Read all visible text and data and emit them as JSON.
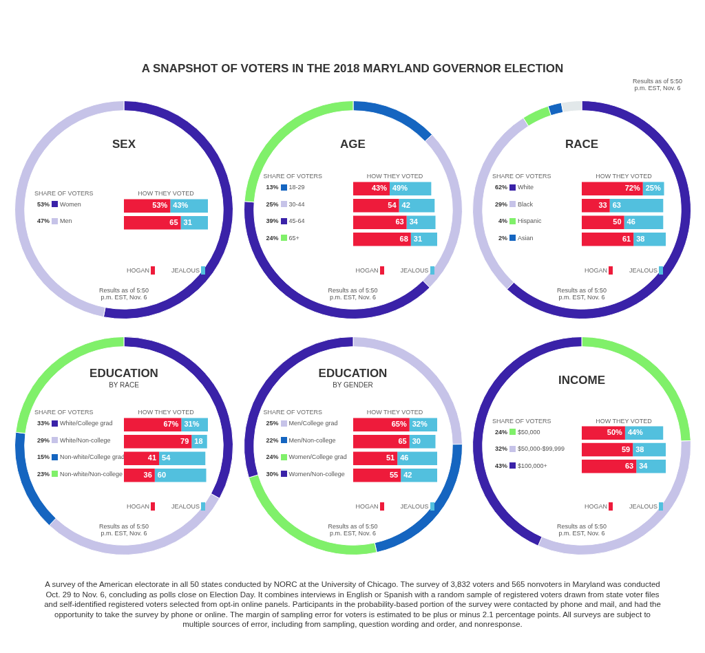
{
  "chart_data": [
    {
      "type": "other",
      "title": "A SNAPSHOT OF VOTERS IN THE 2018 MARYLAND GOVERNOR ELECTION",
      "annotations": [
        "Results as of 5:50 p.m. EST, Nov. 6",
        "A survey of the American electorate in all 50 states conducted by NORC at the University of Chicago. The survey of 3,832 voters and 565 nonvoters in Maryland was conducted Oct. 29 to Nov. 6, concluding as polls close on Election Day. It combines interviews in English or Spanish with a random sample of registered voters drawn from state voter files and self-identified registered voters selected from opt-in online panels. Participants in the probability-based portion of the survey were contacted by phone and mail, and had the opportunity to take the survey by phone or online. The margin of sampling error for voters is estimated to be plus or minus 2.1 percentage points. All surveys are subject to multiple sources of error, including from sampling, question wording and order, and nonresponse."
      ]
    },
    {
      "type": "donut",
      "title": "SEX",
      "legend_title": "SHARE OF VOTERS",
      "legend": "left",
      "categories": [
        "Women",
        "Men"
      ],
      "values": [
        53,
        47
      ],
      "colors": [
        "#3a22a8",
        "#c6c3e8"
      ],
      "value_labels": [
        "53%",
        "47%"
      ],
      "annotations": [
        "Results as of 5:50 p.m. EST, Nov. 6"
      ]
    },
    {
      "type": "bar",
      "orientation": "horizontal",
      "stacked": true,
      "title": "HOW THEY VOTED",
      "legend": "bottom",
      "tick_labels": false,
      "categories": [
        null,
        null
      ],
      "series": [
        {
          "name": "HOGAN",
          "color": "#ee1b3b",
          "values": [
            53,
            65
          ],
          "value_labels": [
            "53%",
            "65"
          ]
        },
        {
          "name": "JEALOUS",
          "color": "#52c0de",
          "values": [
            43,
            31
          ],
          "value_labels": [
            "43%",
            "31"
          ]
        }
      ]
    },
    {
      "type": "donut",
      "title": "AGE",
      "legend_title": "SHARE OF VOTERS",
      "legend": "left",
      "categories": [
        "18-29",
        "30-44",
        "45-64",
        "65+"
      ],
      "values": [
        13,
        25,
        39,
        24
      ],
      "colors": [
        "#1565c0",
        "#c6c3e8",
        "#3a22a8",
        "#80f06a"
      ],
      "value_labels": [
        "13%",
        "25%",
        "39%",
        "24%"
      ],
      "annotations": [
        "Results as of 5:50 p.m. EST, Nov. 6"
      ]
    },
    {
      "type": "bar",
      "orientation": "horizontal",
      "stacked": true,
      "title": "HOW THEY VOTED",
      "legend": "bottom",
      "tick_labels": false,
      "categories": [
        null,
        null,
        null,
        null
      ],
      "series": [
        {
          "name": "HOGAN",
          "color": "#ee1b3b",
          "values": [
            43,
            54,
            63,
            68
          ],
          "value_labels": [
            "43%",
            "54",
            "63",
            "68"
          ]
        },
        {
          "name": "JEALOUS",
          "color": "#52c0de",
          "values": [
            49,
            42,
            34,
            31
          ],
          "value_labels": [
            "49%",
            "42",
            "34",
            "31"
          ]
        }
      ]
    },
    {
      "type": "donut",
      "title": "RACE",
      "legend_title": "SHARE OF VOTERS",
      "legend": "left",
      "categories": [
        "White",
        "Black",
        "Hispanic",
        "Asian",
        null
      ],
      "values": [
        62,
        29,
        4,
        2,
        3
      ],
      "colors": [
        "#3a22a8",
        "#c6c3e8",
        "#80f06a",
        "#1565c0",
        "#e2e8ea"
      ],
      "value_labels": [
        "62%",
        "29%",
        "4%",
        "2%",
        null
      ],
      "annotations": [
        "Results as of 5:50 p.m. EST, Nov. 6"
      ]
    },
    {
      "type": "bar",
      "orientation": "horizontal",
      "stacked": true,
      "title": "HOW THEY VOTED",
      "legend": "bottom",
      "tick_labels": false,
      "categories": [
        null,
        null,
        null,
        null
      ],
      "series": [
        {
          "name": "HOGAN",
          "color": "#ee1b3b",
          "values": [
            72,
            33,
            50,
            61
          ],
          "value_labels": [
            "72%",
            "33",
            "50",
            "61"
          ]
        },
        {
          "name": "JEALOUS",
          "color": "#52c0de",
          "values": [
            25,
            63,
            46,
            38
          ],
          "value_labels": [
            "25%",
            "63",
            "46",
            "38"
          ]
        }
      ]
    },
    {
      "type": "donut",
      "title": "EDUCATION",
      "subtitle": "BY RACE",
      "legend_title": "SHARE OF VOTERS",
      "legend": "left",
      "categories": [
        "White/College grad",
        "White/Non-college",
        "Non-white/College grad",
        "Non-white/Non-college"
      ],
      "values": [
        33,
        29,
        15,
        23
      ],
      "colors": [
        "#3a22a8",
        "#c6c3e8",
        "#1565c0",
        "#80f06a"
      ],
      "value_labels": [
        "33%",
        "29%",
        "15%",
        "23%"
      ],
      "annotations": [
        "Results as of 5:50 p.m. EST, Nov. 6"
      ]
    },
    {
      "type": "bar",
      "orientation": "horizontal",
      "stacked": true,
      "title": "HOW THEY VOTED",
      "legend": "bottom",
      "tick_labels": false,
      "categories": [
        null,
        null,
        null,
        null
      ],
      "series": [
        {
          "name": "HOGAN",
          "color": "#ee1b3b",
          "values": [
            67,
            79,
            41,
            36
          ],
          "value_labels": [
            "67%",
            "79",
            "41",
            "36"
          ]
        },
        {
          "name": "JEALOUS",
          "color": "#52c0de",
          "values": [
            31,
            18,
            54,
            60
          ],
          "value_labels": [
            "31%",
            "18",
            "54",
            "60"
          ]
        }
      ]
    },
    {
      "type": "donut",
      "title": "EDUCATION",
      "subtitle": "BY GENDER",
      "legend_title": "SHARE OF VOTERS",
      "legend": "left",
      "categories": [
        "Men/College grad",
        "Men/Non-college",
        "Women/College grad",
        "Women/Non-college"
      ],
      "values": [
        25,
        22,
        24,
        30
      ],
      "colors": [
        "#c6c3e8",
        "#1565c0",
        "#80f06a",
        "#3a22a8"
      ],
      "value_labels": [
        "25%",
        "22%",
        "24%",
        "30%"
      ],
      "annotations": [
        "Results as of 5:50 p.m. EST, Nov. 6"
      ]
    },
    {
      "type": "bar",
      "orientation": "horizontal",
      "stacked": true,
      "title": "HOW THEY VOTED",
      "legend": "bottom",
      "tick_labels": false,
      "categories": [
        null,
        null,
        null,
        null
      ],
      "series": [
        {
          "name": "HOGAN",
          "color": "#ee1b3b",
          "values": [
            65,
            65,
            51,
            55
          ],
          "value_labels": [
            "65%",
            "65",
            "51",
            "55"
          ]
        },
        {
          "name": "JEALOUS",
          "color": "#52c0de",
          "values": [
            32,
            30,
            46,
            42
          ],
          "value_labels": [
            "32%",
            "30",
            "46",
            "42"
          ]
        }
      ]
    },
    {
      "type": "donut",
      "title": "INCOME",
      "legend_title": "SHARE OF VOTERS",
      "legend": "left",
      "categories": [
        "$50,000",
        "$50,000-$99,999",
        "$100,000+"
      ],
      "values": [
        24,
        32,
        43
      ],
      "colors": [
        "#80f06a",
        "#c6c3e8",
        "#3a22a8"
      ],
      "value_labels": [
        "24%",
        "32%",
        "43%"
      ],
      "annotations": [
        "Results as of 5:50 p.m. EST, Nov. 6"
      ]
    },
    {
      "type": "bar",
      "orientation": "horizontal",
      "stacked": true,
      "title": "HOW THEY VOTED",
      "legend": "bottom",
      "tick_labels": false,
      "categories": [
        null,
        null,
        null
      ],
      "series": [
        {
          "name": "HOGAN",
          "color": "#ee1b3b",
          "values": [
            50,
            59,
            63
          ],
          "value_labels": [
            "50%",
            "59",
            "63"
          ]
        },
        {
          "name": "JEALOUS",
          "color": "#52c0de",
          "values": [
            44,
            38,
            34
          ],
          "value_labels": [
            "44%",
            "38",
            "34"
          ]
        }
      ]
    }
  ]
}
